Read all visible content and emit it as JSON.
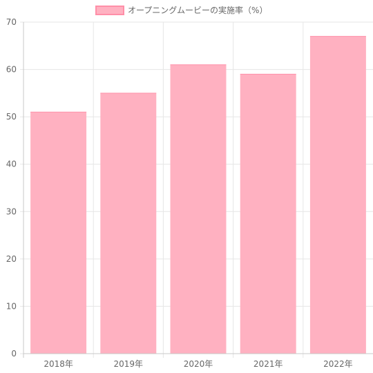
{
  "chart_data": {
    "type": "bar",
    "title": "",
    "xlabel": "",
    "ylabel": "",
    "categories": [
      "2018年",
      "2019年",
      "2020年",
      "2021年",
      "2022年"
    ],
    "series": [
      {
        "name": "オープニングムービーの実施率（%）",
        "values": [
          51,
          55,
          61,
          59,
          67
        ]
      }
    ],
    "ylim": [
      0,
      70
    ],
    "yticks": [
      0,
      10,
      20,
      30,
      40,
      50,
      60,
      70
    ],
    "grid": true,
    "legend_position": "top",
    "colors": {
      "bar_fill": "#ffb1c1",
      "bar_border": "#ff8fa8",
      "grid": "#e6e6e6",
      "axis": "#c8c8c8",
      "text": "#666666"
    }
  }
}
